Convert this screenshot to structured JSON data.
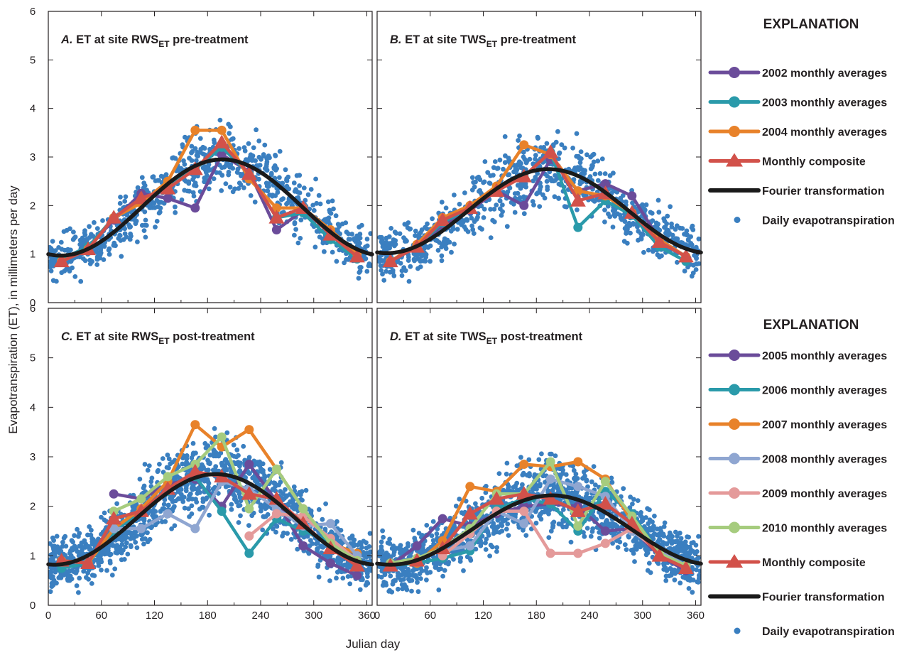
{
  "figure": {
    "ylabel": "Evapotranspiration (ET), in millimeters per day",
    "xlabel": "Julian day"
  },
  "legend_top": {
    "title": "EXPLANATION",
    "items": [
      {
        "label": "2002 monthly averages",
        "color": "#6b4c9a",
        "kind": "line-circle"
      },
      {
        "label": "2003 monthly averages",
        "color": "#2a9aaa",
        "kind": "line-circle"
      },
      {
        "label": "2004 monthly averages",
        "color": "#e8822a",
        "kind": "line-circle"
      },
      {
        "label": "Monthly composite",
        "color": "#d2514a",
        "kind": "line-triangle"
      },
      {
        "label": "Fourier transformation",
        "color": "#1a1a1a",
        "kind": "line"
      },
      {
        "label": "Daily evapotranspiration",
        "color": "#3a7fc0",
        "kind": "dot"
      }
    ]
  },
  "legend_bottom": {
    "title": "EXPLANATION",
    "items": [
      {
        "label": "2005 monthly averages",
        "color": "#6b4c9a",
        "kind": "line-circle"
      },
      {
        "label": "2006 monthly averages",
        "color": "#2a9aaa",
        "kind": "line-circle"
      },
      {
        "label": "2007 monthly averages",
        "color": "#e8822a",
        "kind": "line-circle"
      },
      {
        "label": "2008 monthly averages",
        "color": "#8fa6d1",
        "kind": "line-circle"
      },
      {
        "label": "2009 monthly averages",
        "color": "#e49a9a",
        "kind": "line-circle"
      },
      {
        "label": "2010 monthly averages",
        "color": "#a6cc7e",
        "kind": "line-circle"
      },
      {
        "label": "Monthly composite",
        "color": "#d2514a",
        "kind": "line-triangle"
      },
      {
        "label": "Fourier transformation",
        "color": "#1a1a1a",
        "kind": "line"
      },
      {
        "label": "Daily evapotranspiration",
        "color": "#3a7fc0",
        "kind": "dot"
      }
    ]
  },
  "chart_data": [
    {
      "type": "line",
      "panel": "A",
      "title": {
        "letter": "A.",
        "pre": " ET at site RWS",
        "sub": "ET",
        "post": " pre-treatment"
      },
      "xlim": [
        0,
        366
      ],
      "ylim": [
        0,
        6
      ],
      "xticks": [
        0,
        60,
        120,
        180,
        240,
        300,
        360
      ],
      "yticks": [
        0,
        1,
        2,
        3,
        4,
        5,
        6
      ],
      "scatter": {
        "name": "Daily evapotranspiration",
        "base": 0.97,
        "amp": 1.98,
        "noise": 0.6,
        "count": 800
      },
      "fourier": {
        "name": "Fourier transformation",
        "base": 0.97,
        "amp": 1.98,
        "peak_day": 197
      },
      "series": [
        {
          "name": "2002 monthly averages",
          "color": "#6b4c9a",
          "marker": "circle",
          "x": [
            15,
            45,
            74,
            105,
            135,
            166,
            196,
            227,
            258,
            288,
            319,
            349
          ],
          "y": [
            0.9,
            1.15,
            1.7,
            2.25,
            2.15,
            1.95,
            3.05,
            2.7,
            1.5,
            1.9,
            1.45,
            0.95
          ]
        },
        {
          "name": "2003 monthly averages",
          "color": "#2a9aaa",
          "marker": "circle",
          "x": [
            15,
            45,
            74,
            105,
            135,
            166,
            196,
            227,
            258,
            288,
            319,
            349
          ],
          "y": [
            0.9,
            1.15,
            1.75,
            2.1,
            2.4,
            2.75,
            3.2,
            2.65,
            1.75,
            1.85,
            1.3,
            0.9
          ]
        },
        {
          "name": "2004 monthly averages",
          "color": "#e8822a",
          "marker": "circle",
          "x": [
            15,
            45,
            74,
            105,
            135,
            166,
            196,
            227,
            258,
            288,
            319,
            349
          ],
          "y": [
            0.85,
            1.1,
            1.75,
            2.05,
            2.5,
            3.55,
            3.55,
            2.55,
            1.95,
            1.95,
            1.5,
            1.0
          ]
        },
        {
          "name": "Monthly composite",
          "color": "#d2514a",
          "marker": "triangle",
          "x": [
            15,
            45,
            74,
            105,
            135,
            166,
            196,
            227,
            258,
            288,
            319,
            349
          ],
          "y": [
            0.85,
            1.1,
            1.75,
            2.15,
            2.35,
            2.75,
            3.3,
            2.65,
            1.75,
            1.95,
            1.4,
            0.95
          ]
        }
      ]
    },
    {
      "type": "line",
      "panel": "B",
      "title": {
        "letter": "B.",
        "pre": " ET at site TWS",
        "sub": "ET",
        "post": " pre-treatment"
      },
      "xlim": [
        0,
        366
      ],
      "ylim": [
        0,
        6
      ],
      "xticks": [
        0,
        60,
        120,
        180,
        240,
        300,
        360
      ],
      "yticks": [
        0,
        1,
        2,
        3,
        4,
        5,
        6
      ],
      "scatter": {
        "name": "Daily evapotranspiration",
        "base": 1.02,
        "amp": 1.73,
        "noise": 0.6,
        "count": 800
      },
      "fourier": {
        "name": "Fourier transformation",
        "base": 1.02,
        "amp": 1.73,
        "peak_day": 194
      },
      "series": [
        {
          "name": "2002 monthly averages",
          "color": "#6b4c9a",
          "marker": "circle",
          "x": [
            15,
            45,
            74,
            105,
            135,
            166,
            196,
            227,
            258,
            288,
            319,
            349
          ],
          "y": [
            0.85,
            1.15,
            1.6,
            1.9,
            2.3,
            2.0,
            2.95,
            2.3,
            2.45,
            2.2,
            1.3,
            0.95
          ]
        },
        {
          "name": "2003 monthly averages",
          "color": "#2a9aaa",
          "marker": "circle",
          "x": [
            15,
            45,
            74,
            105,
            135,
            166,
            196,
            227,
            258,
            288,
            319,
            349
          ],
          "y": [
            0.85,
            1.15,
            1.65,
            1.95,
            2.35,
            2.6,
            3.1,
            1.55,
            2.1,
            1.8,
            1.15,
            0.85
          ]
        },
        {
          "name": "2004 monthly averages",
          "color": "#e8822a",
          "marker": "circle",
          "x": [
            15,
            45,
            74,
            105,
            135,
            166,
            196,
            227,
            258,
            288,
            319,
            349
          ],
          "y": [
            0.85,
            1.2,
            1.75,
            2.0,
            2.4,
            3.25,
            3.05,
            2.3,
            2.2,
            1.85,
            1.3,
            0.95
          ]
        },
        {
          "name": "Monthly composite",
          "color": "#d2514a",
          "marker": "triangle",
          "x": [
            15,
            45,
            74,
            105,
            135,
            166,
            196,
            227,
            258,
            288,
            319,
            349
          ],
          "y": [
            0.85,
            1.15,
            1.7,
            1.95,
            2.3,
            2.6,
            3.1,
            2.1,
            2.25,
            1.85,
            1.25,
            0.95
          ]
        }
      ]
    },
    {
      "type": "line",
      "panel": "C",
      "title": {
        "letter": "C.",
        "pre": " ET at site RWS",
        "sub": "ET",
        "post": " post-treatment"
      },
      "xlim": [
        0,
        366
      ],
      "ylim": [
        0,
        6
      ],
      "xticks": [
        0,
        60,
        120,
        180,
        240,
        300,
        360
      ],
      "yticks": [
        0,
        1,
        2,
        3,
        4,
        5,
        6
      ],
      "scatter": {
        "name": "Daily evapotranspiration",
        "base": 0.82,
        "amp": 1.83,
        "noise": 0.62,
        "count": 1400
      },
      "fourier": {
        "name": "Fourier transformation",
        "base": 0.82,
        "amp": 1.83,
        "peak_day": 190
      },
      "series": [
        {
          "name": "2005 monthly averages",
          "color": "#6b4c9a",
          "marker": "circle",
          "x": [
            74,
            105,
            135,
            166,
            196,
            227,
            258,
            288,
            319,
            349
          ],
          "y": [
            2.25,
            2.15,
            2.45,
            2.55,
            2.0,
            2.85,
            2.1,
            1.2,
            0.85,
            0.6
          ]
        },
        {
          "name": "2006 monthly averages",
          "color": "#2a9aaa",
          "marker": "circle",
          "x": [
            15,
            45,
            74,
            105,
            135,
            166,
            196,
            227,
            258,
            288,
            319,
            349
          ],
          "y": [
            0.75,
            0.85,
            1.5,
            1.9,
            2.3,
            2.6,
            1.9,
            1.05,
            1.75,
            1.5,
            1.3,
            0.8
          ]
        },
        {
          "name": "2007 monthly averages",
          "color": "#e8822a",
          "marker": "circle",
          "x": [
            15,
            45,
            74,
            105,
            135,
            166,
            196,
            227,
            258,
            288,
            319,
            349
          ],
          "y": [
            0.9,
            0.85,
            1.55,
            1.95,
            2.5,
            3.65,
            3.2,
            3.55,
            2.75,
            1.95,
            1.25,
            1.05
          ]
        },
        {
          "name": "2008 monthly averages",
          "color": "#8fa6d1",
          "marker": "circle",
          "x": [
            74,
            105,
            135,
            166,
            196,
            227,
            258,
            288,
            319,
            349
          ],
          "y": [
            1.55,
            1.55,
            1.85,
            1.55,
            2.5,
            2.35,
            1.95,
            1.6,
            1.65,
            1.0
          ]
        },
        {
          "name": "2009 monthly averages",
          "color": "#e49a9a",
          "marker": "circle",
          "x": [
            227,
            258,
            288,
            319,
            349
          ],
          "y": [
            1.4,
            1.85,
            1.8,
            1.35,
            0.9
          ]
        },
        {
          "name": "2010 monthly averages",
          "color": "#a6cc7e",
          "marker": "circle",
          "x": [
            74,
            105,
            135,
            166,
            196,
            227,
            258,
            288,
            319,
            349
          ],
          "y": [
            1.9,
            2.15,
            2.6,
            2.85,
            3.4,
            1.95,
            2.75,
            1.95,
            1.25,
            0.9
          ]
        },
        {
          "name": "Monthly composite",
          "color": "#d2514a",
          "marker": "triangle",
          "x": [
            15,
            45,
            74,
            105,
            135,
            166,
            196,
            227,
            258,
            288,
            319,
            349
          ],
          "y": [
            0.9,
            0.85,
            1.75,
            1.9,
            2.35,
            2.7,
            2.6,
            2.25,
            2.15,
            1.65,
            1.15,
            0.8
          ]
        }
      ]
    },
    {
      "type": "line",
      "panel": "D",
      "title": {
        "letter": "D.",
        "pre": " ET at site TWS",
        "sub": "ET",
        "post": " post-treatment"
      },
      "xlim": [
        0,
        366
      ],
      "ylim": [
        0,
        6
      ],
      "xticks": [
        0,
        60,
        120,
        180,
        240,
        300,
        360
      ],
      "yticks": [
        0,
        1,
        2,
        3,
        4,
        5,
        6
      ],
      "scatter": {
        "name": "Daily evapotranspiration",
        "base": 0.82,
        "amp": 1.4,
        "noise": 0.6,
        "count": 1400
      },
      "fourier": {
        "name": "Fourier transformation",
        "base": 0.82,
        "amp": 1.4,
        "peak_day": 198
      },
      "series": [
        {
          "name": "2005 monthly averages",
          "color": "#6b4c9a",
          "marker": "circle",
          "x": [
            15,
            45,
            74,
            105,
            135,
            166,
            196,
            227,
            258,
            288,
            319,
            349
          ],
          "y": [
            0.8,
            1.2,
            1.75,
            1.6,
            1.85,
            2.0,
            2.05,
            2.0,
            1.5,
            1.55,
            1.0,
            0.7
          ]
        },
        {
          "name": "2006 monthly averages",
          "color": "#2a9aaa",
          "marker": "circle",
          "x": [
            15,
            45,
            74,
            105,
            135,
            166,
            196,
            227,
            258,
            288,
            319,
            349
          ],
          "y": [
            0.8,
            0.85,
            0.95,
            1.1,
            1.95,
            2.15,
            2.05,
            1.5,
            2.3,
            1.85,
            1.05,
            0.75
          ]
        },
        {
          "name": "2007 monthly averages",
          "color": "#e8822a",
          "marker": "circle",
          "x": [
            15,
            45,
            74,
            105,
            135,
            166,
            196,
            227,
            258,
            288,
            319,
            349
          ],
          "y": [
            0.85,
            0.85,
            1.3,
            2.4,
            2.3,
            2.85,
            2.8,
            2.9,
            2.55,
            1.7,
            1.1,
            0.8
          ]
        },
        {
          "name": "2008 monthly averages",
          "color": "#8fa6d1",
          "marker": "circle",
          "x": [
            74,
            105,
            135,
            166,
            196,
            227,
            258,
            288,
            319,
            349
          ],
          "y": [
            1.1,
            1.2,
            1.9,
            1.65,
            2.55,
            2.4,
            2.2,
            1.5,
            1.1,
            0.8
          ]
        },
        {
          "name": "2009 monthly averages",
          "color": "#e49a9a",
          "marker": "circle",
          "x": [
            74,
            105,
            135,
            166,
            196,
            227,
            258,
            288,
            319,
            349
          ],
          "y": [
            1.0,
            1.45,
            1.9,
            1.9,
            1.05,
            1.05,
            1.25,
            1.55,
            1.05,
            0.75
          ]
        },
        {
          "name": "2010 monthly averages",
          "color": "#a6cc7e",
          "marker": "circle",
          "x": [
            15,
            45,
            74,
            105,
            135,
            166,
            196,
            227,
            258,
            288,
            319,
            349
          ],
          "y": [
            0.85,
            0.95,
            1.15,
            1.55,
            2.25,
            2.25,
            2.9,
            1.6,
            2.5,
            1.8,
            1.05,
            0.8
          ]
        },
        {
          "name": "Monthly composite",
          "color": "#d2514a",
          "marker": "triangle",
          "x": [
            15,
            45,
            74,
            105,
            135,
            166,
            196,
            227,
            258,
            288,
            319,
            349
          ],
          "y": [
            0.8,
            0.9,
            1.15,
            1.85,
            2.15,
            2.25,
            2.15,
            1.9,
            2.05,
            1.65,
            1.0,
            0.75
          ]
        }
      ]
    }
  ]
}
